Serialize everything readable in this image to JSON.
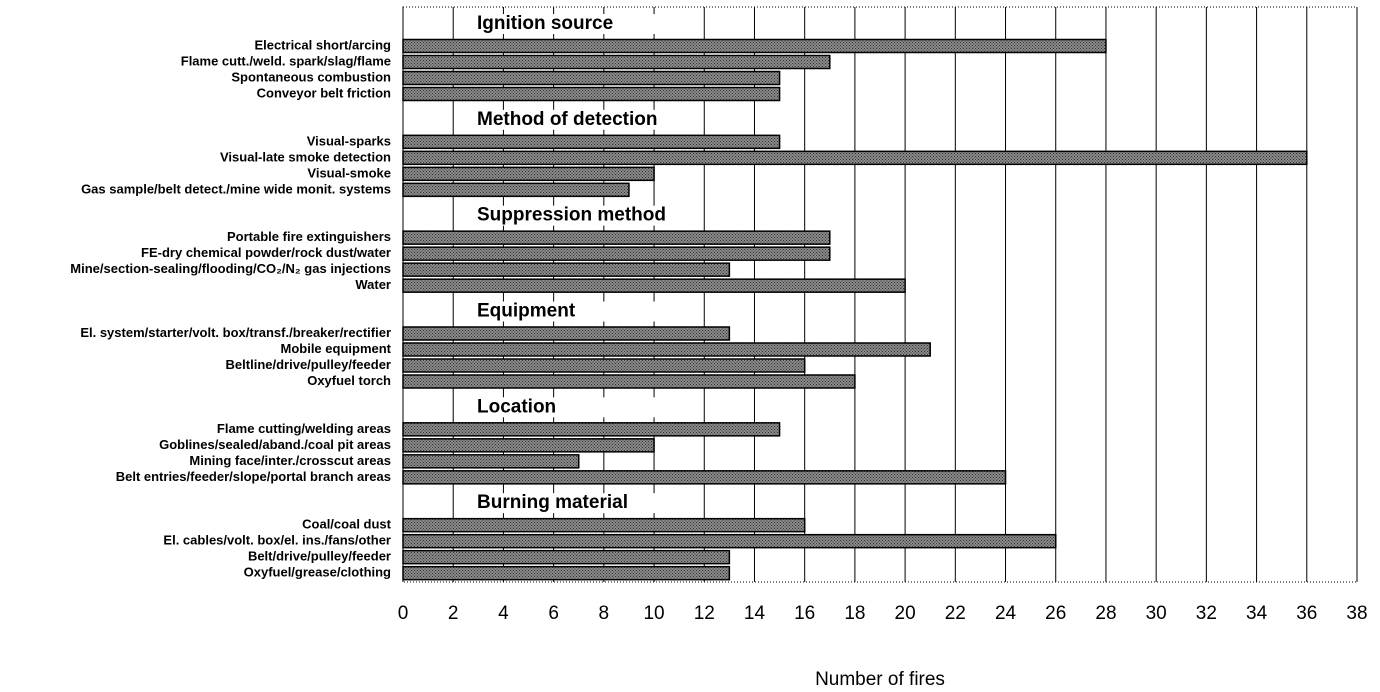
{
  "chart_data": {
    "type": "bar",
    "orientation": "horizontal",
    "xlabel": "Number of fires",
    "color": "#8a8a8a",
    "grid": true,
    "xlim": [
      0,
      38
    ],
    "xticks": [
      0,
      2,
      4,
      6,
      8,
      10,
      12,
      14,
      16,
      18,
      20,
      22,
      24,
      26,
      28,
      30,
      32,
      34,
      36,
      38
    ],
    "groups": [
      {
        "name": "Ignition source",
        "categories": [
          "Electrical short/arcing",
          "Flame cutt./weld. spark/slag/flame",
          "Spontaneous combustion",
          "Conveyor belt friction"
        ],
        "values": [
          28,
          17,
          15,
          15
        ]
      },
      {
        "name": "Method of detection",
        "categories": [
          "Visual-sparks",
          "Visual-late smoke detection",
          "Visual-smoke",
          "Gas sample/belt detect./mine wide monit. systems"
        ],
        "values": [
          15,
          36,
          10,
          9
        ]
      },
      {
        "name": "Suppression method",
        "categories": [
          "Portable fire extinguishers",
          "FE-dry chemical powder/rock dust/water",
          "Mine/section-sealing/flooding/CO₂/N₂ gas injections",
          "Water"
        ],
        "values": [
          17,
          17,
          13,
          20
        ]
      },
      {
        "name": "Equipment",
        "categories": [
          "El. system/starter/volt. box/transf./breaker/rectifier",
          "Mobile equipment",
          "Beltline/drive/pulley/feeder",
          "Oxyfuel torch"
        ],
        "values": [
          13,
          21,
          16,
          18
        ]
      },
      {
        "name": "Location",
        "categories": [
          "Flame cutting/welding areas",
          "Goblines/sealed/aband./coal pit areas",
          "Mining face/inter./crosscut areas",
          "Belt entries/feeder/slope/portal branch areas"
        ],
        "values": [
          15,
          10,
          7,
          24
        ]
      },
      {
        "name": "Burning material",
        "categories": [
          "Coal/coal dust",
          "El. cables/volt. box/el. ins./fans/other",
          "Belt/drive/pulley/feeder",
          "Oxyfuel/grease/clothing"
        ],
        "values": [
          16,
          26,
          13,
          13
        ]
      }
    ]
  }
}
